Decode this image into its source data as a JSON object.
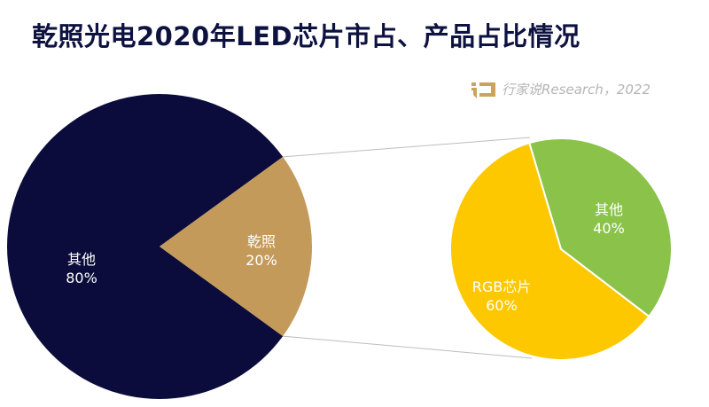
{
  "title": "乾照光电2020年LED芯片市占、产品占比情况",
  "source": "行家说Research，2022",
  "chart_data": {
    "type": "pie-of-pie",
    "title": "乾照光电2020年LED芯片市占、产品占比情况",
    "main_pie": {
      "slices": [
        {
          "label": "其他",
          "value": 80,
          "value_label": "80%",
          "color": "#0b0c3c"
        },
        {
          "label": "乾照",
          "value": 20,
          "value_label": "20%",
          "color": "#c49a5a"
        }
      ]
    },
    "secondary_pie": {
      "of": "乾照",
      "slices": [
        {
          "label": "其他",
          "value": 40,
          "value_label": "40%",
          "color": "#8bc34a"
        },
        {
          "label": "RGB芯片",
          "value": 60,
          "value_label": "60%",
          "color": "#fdc800"
        }
      ]
    }
  }
}
